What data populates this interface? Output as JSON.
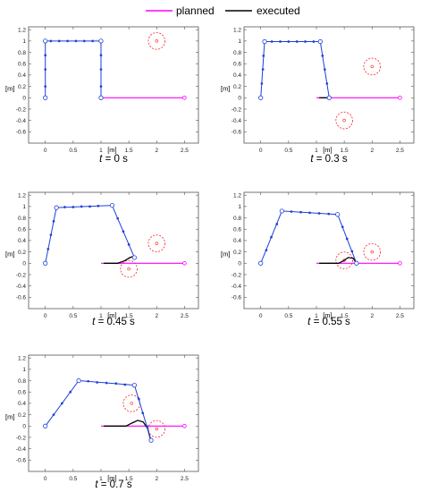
{
  "legend": {
    "items": [
      {
        "label": "planned",
        "color": "#ff00ff"
      },
      {
        "label": "executed",
        "color": "#000000"
      }
    ]
  },
  "colors": {
    "arm": "#1f3fd8",
    "planned": "#ff00ff",
    "executed": "#000000",
    "obstacle": "#ff2020"
  },
  "chart_data": [
    {
      "type": "line",
      "caption_t": "t",
      "caption_rest": " = 0 s",
      "xlabel": "[m]",
      "ylabel": "[m]",
      "xlim": [
        -0.3,
        2.75
      ],
      "ylim": [
        -0.8,
        1.25
      ],
      "xticks": [
        0,
        0.5,
        1,
        1.5,
        2,
        2.5
      ],
      "xtick_labels": [
        "0",
        "0.5",
        "1",
        "1.5",
        "2",
        "2.5"
      ],
      "yticks": [
        1.2,
        1,
        0.8,
        0.6,
        0.4,
        0.2,
        0,
        -0.2,
        -0.4,
        -0.6
      ],
      "ytick_labels": [
        "1.2",
        "1",
        "0.8",
        "0.6",
        "0.4",
        "0.2",
        "0",
        "-0.2",
        "-0.4",
        "-0.6"
      ],
      "series": [
        {
          "role": "arm",
          "joints": [
            [
              0,
              0
            ],
            [
              0,
              1
            ],
            [
              1,
              1
            ],
            [
              1,
              0
            ]
          ],
          "points": [
            [
              0,
              0
            ],
            [
              0,
              0.2
            ],
            [
              0,
              0.5
            ],
            [
              0,
              0.75
            ],
            [
              0,
              1
            ],
            [
              0.1,
              1
            ],
            [
              0.25,
              1
            ],
            [
              0.4,
              1
            ],
            [
              0.55,
              1
            ],
            [
              0.7,
              1
            ],
            [
              0.85,
              1
            ],
            [
              1,
              1
            ],
            [
              1,
              0.75
            ],
            [
              1,
              0.5
            ],
            [
              1,
              0.2
            ],
            [
              1,
              0
            ]
          ]
        },
        {
          "role": "planned",
          "points": [
            [
              1,
              0
            ],
            [
              2.5,
              0
            ]
          ]
        },
        {
          "role": "executed",
          "points": []
        }
      ],
      "obstacles": [
        {
          "x": 2,
          "y": 1,
          "r": 0.15
        }
      ]
    },
    {
      "type": "line",
      "caption_t": "t",
      "caption_rest": " = 0.3 s",
      "xlabel": "[m]",
      "ylabel": "[m]",
      "xlim": [
        -0.3,
        2.75
      ],
      "ylim": [
        -0.8,
        1.25
      ],
      "xticks": [
        0,
        0.5,
        1,
        1.5,
        2,
        2.5
      ],
      "xtick_labels": [
        "0",
        "0.5",
        "1",
        "1.5",
        "2",
        "2.5"
      ],
      "yticks": [
        1.2,
        1,
        0.8,
        0.6,
        0.4,
        0.2,
        0,
        -0.2,
        -0.4,
        -0.6
      ],
      "ytick_labels": [
        "1.2",
        "1",
        "0.8",
        "0.6",
        "0.4",
        "0.2",
        "0",
        "-0.2",
        "-0.4",
        "-0.6"
      ],
      "series": [
        {
          "role": "arm",
          "joints": [
            [
              0,
              0
            ],
            [
              0.07,
              0.99
            ],
            [
              1.07,
              0.99
            ],
            [
              1.23,
              0
            ]
          ],
          "points": [
            [
              0,
              0
            ],
            [
              0.02,
              0.25
            ],
            [
              0.04,
              0.5
            ],
            [
              0.05,
              0.74
            ],
            [
              0.07,
              0.99
            ],
            [
              0.2,
              0.99
            ],
            [
              0.35,
              0.99
            ],
            [
              0.5,
              0.99
            ],
            [
              0.65,
              0.99
            ],
            [
              0.8,
              0.99
            ],
            [
              0.95,
              0.99
            ],
            [
              1.07,
              0.99
            ],
            [
              1.11,
              0.74
            ],
            [
              1.15,
              0.5
            ],
            [
              1.19,
              0.25
            ],
            [
              1.23,
              0
            ]
          ]
        },
        {
          "role": "planned",
          "points": [
            [
              1,
              0
            ],
            [
              2.5,
              0
            ]
          ]
        },
        {
          "role": "executed",
          "points": [
            [
              1.05,
              0
            ],
            [
              1.23,
              0
            ]
          ]
        }
      ],
      "obstacles": [
        {
          "x": 2,
          "y": 0.55,
          "r": 0.15
        },
        {
          "x": 1.5,
          "y": -0.4,
          "r": 0.15
        }
      ]
    },
    {
      "type": "line",
      "caption_t": "t",
      "caption_rest": " = 0.45 s",
      "xlabel": "[m]",
      "ylabel": "[m]",
      "xlim": [
        -0.3,
        2.75
      ],
      "ylim": [
        -0.8,
        1.25
      ],
      "xticks": [
        0,
        0.5,
        1,
        1.5,
        2,
        2.5
      ],
      "xtick_labels": [
        "0",
        "0.5",
        "1",
        "1.5",
        "2",
        "2.5"
      ],
      "yticks": [
        1.2,
        1,
        0.8,
        0.6,
        0.4,
        0.2,
        0,
        -0.2,
        -0.4,
        -0.6
      ],
      "ytick_labels": [
        "1.2",
        "1",
        "0.8",
        "0.6",
        "0.4",
        "0.2",
        "0",
        "-0.2",
        "-0.4",
        "-0.6"
      ],
      "series": [
        {
          "role": "arm",
          "joints": [
            [
              0,
              0
            ],
            [
              0.2,
              0.98
            ],
            [
              1.2,
              1.02
            ],
            [
              1.6,
              0.1
            ]
          ],
          "points": [
            [
              0,
              0
            ],
            [
              0.05,
              0.25
            ],
            [
              0.1,
              0.5
            ],
            [
              0.15,
              0.74
            ],
            [
              0.2,
              0.98
            ],
            [
              0.35,
              0.99
            ],
            [
              0.5,
              0.99
            ],
            [
              0.65,
              1
            ],
            [
              0.8,
              1
            ],
            [
              0.95,
              1.01
            ],
            [
              1.2,
              1.02
            ],
            [
              1.3,
              0.79
            ],
            [
              1.4,
              0.56
            ],
            [
              1.5,
              0.33
            ],
            [
              1.6,
              0.1
            ]
          ]
        },
        {
          "role": "planned",
          "points": [
            [
              1,
              0
            ],
            [
              2.5,
              0
            ]
          ]
        },
        {
          "role": "executed",
          "points": [
            [
              1.05,
              0
            ],
            [
              1.3,
              0
            ],
            [
              1.42,
              0.04
            ],
            [
              1.52,
              0.1
            ],
            [
              1.58,
              0.12
            ]
          ]
        }
      ],
      "obstacles": [
        {
          "x": 2,
          "y": 0.35,
          "r": 0.15
        },
        {
          "x": 1.5,
          "y": -0.1,
          "r": 0.15
        }
      ]
    },
    {
      "type": "line",
      "caption_t": "t",
      "caption_rest": " = 0.55 s",
      "xlabel": "[m]",
      "ylabel": "[m]",
      "xlim": [
        -0.3,
        2.75
      ],
      "ylim": [
        -0.8,
        1.25
      ],
      "xticks": [
        0,
        0.5,
        1,
        1.5,
        2,
        2.5
      ],
      "xtick_labels": [
        "0",
        "0.5",
        "1",
        "1.5",
        "2",
        "2.5"
      ],
      "yticks": [
        1.2,
        1,
        0.8,
        0.6,
        0.4,
        0.2,
        0,
        -0.2,
        -0.4,
        -0.6
      ],
      "ytick_labels": [
        "1.2",
        "1",
        "0.8",
        "0.6",
        "0.4",
        "0.2",
        "0",
        "-0.2",
        "-0.4",
        "-0.6"
      ],
      "series": [
        {
          "role": "arm",
          "joints": [
            [
              0,
              0
            ],
            [
              0.38,
              0.92
            ],
            [
              1.38,
              0.86
            ],
            [
              1.72,
              0
            ]
          ],
          "points": [
            [
              0,
              0
            ],
            [
              0.1,
              0.23
            ],
            [
              0.19,
              0.46
            ],
            [
              0.29,
              0.69
            ],
            [
              0.38,
              0.92
            ],
            [
              0.55,
              0.91
            ],
            [
              0.72,
              0.9
            ],
            [
              0.88,
              0.89
            ],
            [
              1.05,
              0.88
            ],
            [
              1.22,
              0.87
            ],
            [
              1.38,
              0.86
            ],
            [
              1.47,
              0.64
            ],
            [
              1.55,
              0.43
            ],
            [
              1.64,
              0.21
            ],
            [
              1.72,
              0
            ]
          ]
        },
        {
          "role": "planned",
          "points": [
            [
              1,
              0
            ],
            [
              2.5,
              0
            ]
          ]
        },
        {
          "role": "executed",
          "points": [
            [
              1.05,
              0
            ],
            [
              1.4,
              0
            ],
            [
              1.5,
              0.05
            ],
            [
              1.57,
              0.1
            ],
            [
              1.66,
              0.09
            ],
            [
              1.72,
              0
            ]
          ]
        }
      ],
      "obstacles": [
        {
          "x": 2,
          "y": 0.2,
          "r": 0.15
        },
        {
          "x": 1.5,
          "y": 0.05,
          "r": 0.15
        }
      ]
    },
    {
      "type": "line",
      "caption_t": "t",
      "caption_rest": " = 0.7 s",
      "xlabel": "[m]",
      "ylabel": "[m]",
      "xlim": [
        -0.3,
        2.75
      ],
      "ylim": [
        -0.8,
        1.25
      ],
      "xticks": [
        0,
        0.5,
        1,
        1.5,
        2,
        2.5
      ],
      "xtick_labels": [
        "0",
        "0.5",
        "1",
        "1.5",
        "2",
        "2.5"
      ],
      "yticks": [
        1.2,
        1,
        0.8,
        0.6,
        0.4,
        0.2,
        0,
        -0.2,
        -0.4,
        -0.6
      ],
      "ytick_labels": [
        "1.2",
        "1",
        "0.8",
        "0.6",
        "0.4",
        "0.2",
        "0",
        "-0.2",
        "-0.4",
        "-0.6"
      ],
      "series": [
        {
          "role": "arm",
          "joints": [
            [
              0,
              0
            ],
            [
              0.6,
              0.8
            ],
            [
              1.6,
              0.72
            ],
            [
              1.9,
              -0.25
            ]
          ],
          "points": [
            [
              0,
              0
            ],
            [
              0.15,
              0.2
            ],
            [
              0.3,
              0.4
            ],
            [
              0.45,
              0.6
            ],
            [
              0.6,
              0.8
            ],
            [
              0.77,
              0.79
            ],
            [
              0.93,
              0.77
            ],
            [
              1.1,
              0.76
            ],
            [
              1.27,
              0.75
            ],
            [
              1.43,
              0.73
            ],
            [
              1.6,
              0.72
            ],
            [
              1.68,
              0.48
            ],
            [
              1.75,
              0.23
            ],
            [
              1.83,
              -0.01
            ],
            [
              1.9,
              -0.25
            ]
          ]
        },
        {
          "role": "planned",
          "points": [
            [
              1,
              0
            ],
            [
              2.5,
              0
            ]
          ]
        },
        {
          "role": "executed",
          "points": [
            [
              1.05,
              0
            ],
            [
              1.45,
              0
            ],
            [
              1.55,
              0.05
            ],
            [
              1.66,
              0.1
            ],
            [
              1.76,
              0.07
            ],
            [
              1.84,
              -0.05
            ],
            [
              1.88,
              -0.2
            ],
            [
              1.9,
              -0.25
            ]
          ]
        }
      ],
      "obstacles": [
        {
          "x": 1.55,
          "y": 0.4,
          "r": 0.15
        },
        {
          "x": 2,
          "y": -0.05,
          "r": 0.15
        }
      ]
    }
  ]
}
